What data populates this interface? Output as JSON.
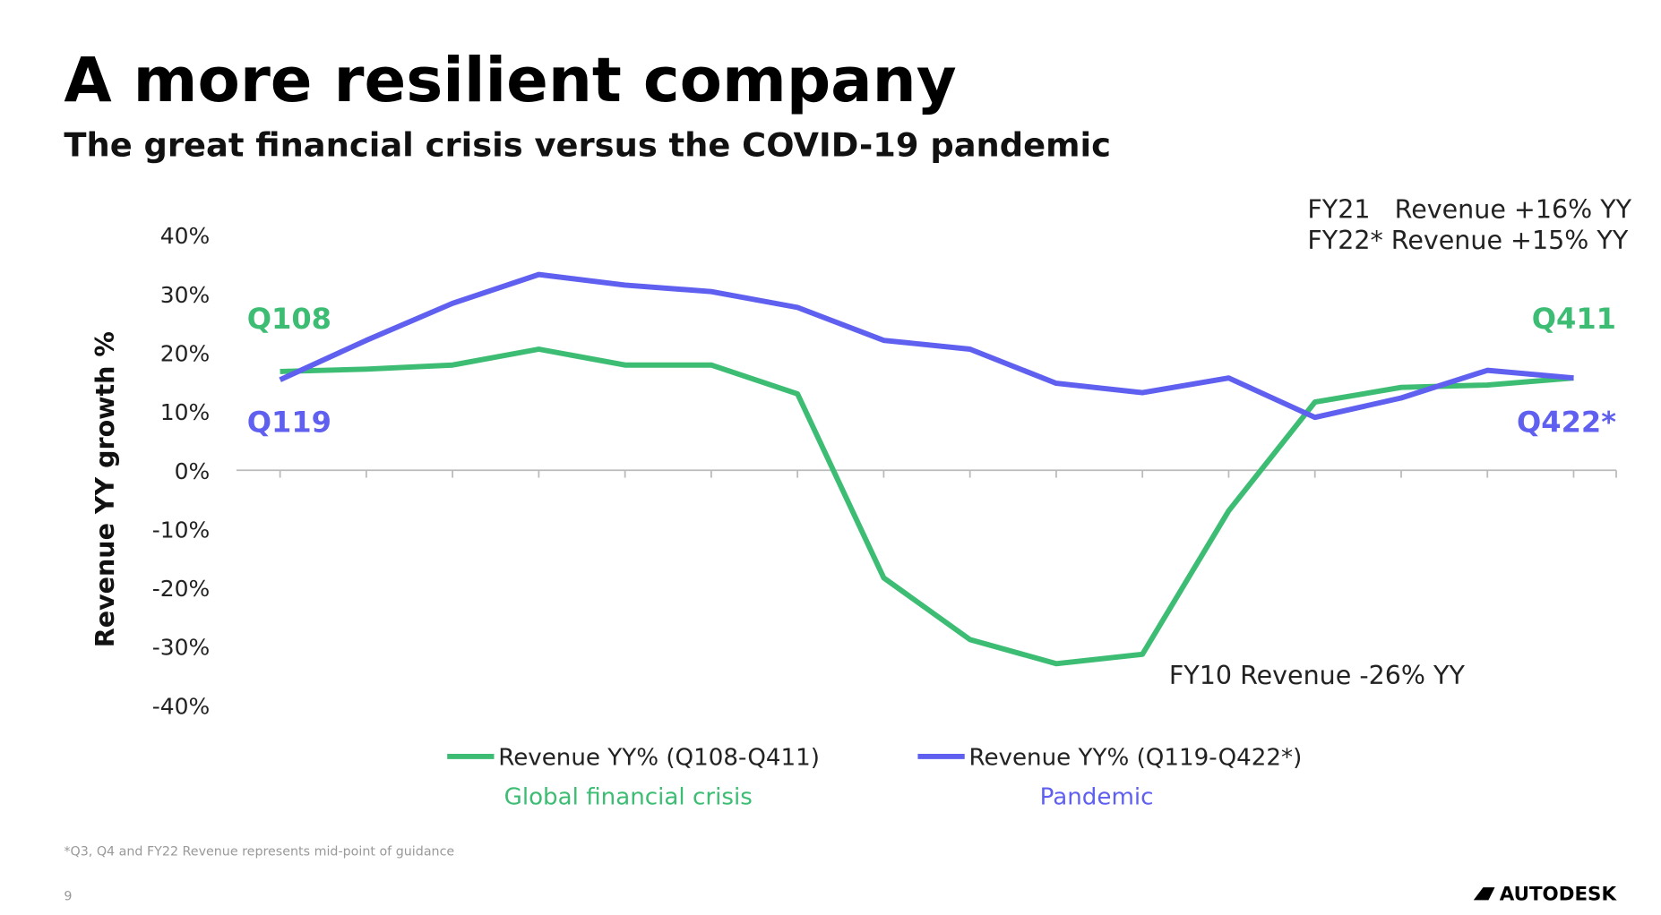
{
  "chart_data": {
    "type": "line",
    "title": "A more resilient company",
    "subtitle": "The great financial crisis versus the COVID-19 pandemic",
    "y_label": "Revenue YY growth %",
    "categories": [
      null,
      null,
      null,
      null,
      null,
      null,
      null,
      null,
      null,
      null,
      null,
      null,
      null,
      null,
      null,
      null
    ],
    "series": [
      {
        "name": "Revenue YY% (Q108-Q411)",
        "group": "Global financial crisis",
        "color": "#3dbd74",
        "values": [
          16.8,
          17.2,
          17.9,
          20.6,
          17.9,
          17.9,
          13.0,
          -18.3,
          -28.8,
          -32.9,
          -31.3,
          -6.9,
          11.6,
          14.1,
          14.5,
          15.7
        ]
      },
      {
        "name": "Revenue YY% (Q119-Q422*)",
        "group": "Pandemic",
        "color": "#6060f0",
        "values": [
          15.4,
          22.1,
          28.4,
          33.3,
          31.5,
          30.4,
          27.7,
          22.1,
          20.6,
          14.8,
          13.2,
          15.7,
          9.0,
          12.3,
          17.0,
          15.7
        ]
      }
    ],
    "ylim": [
      -40,
      40
    ],
    "yticks": [
      {
        "value": 40,
        "label": "40%"
      },
      {
        "value": 30,
        "label": "30%"
      },
      {
        "value": 20,
        "label": "20%"
      },
      {
        "value": 10,
        "label": "10%"
      },
      {
        "value": 0,
        "label": "0%"
      },
      {
        "value": -10,
        "label": "-10%"
      },
      {
        "value": -20,
        "label": "-20%"
      },
      {
        "value": -30,
        "label": "-30%"
      },
      {
        "value": -40,
        "label": "-40%"
      }
    ],
    "annotations": [
      {
        "text": "Q108",
        "color": "#3dbd74"
      },
      {
        "text": "Q119",
        "color": "#6060f0"
      },
      {
        "text": "Q411",
        "color": "#3dbd74"
      },
      {
        "text": "Q422*",
        "color": "#6060f0"
      },
      {
        "text": "FY21   Revenue +16% YY",
        "color": "#222222"
      },
      {
        "text": "FY22* Revenue +15% YY",
        "color": "#222222"
      },
      {
        "text": "FY10 Revenue -26% YY",
        "color": "#222222"
      }
    ]
  },
  "footnote": "*Q3, Q4 and FY22 Revenue represents mid-point of guidance",
  "page_number": "9",
  "logo": "AUTODESK"
}
